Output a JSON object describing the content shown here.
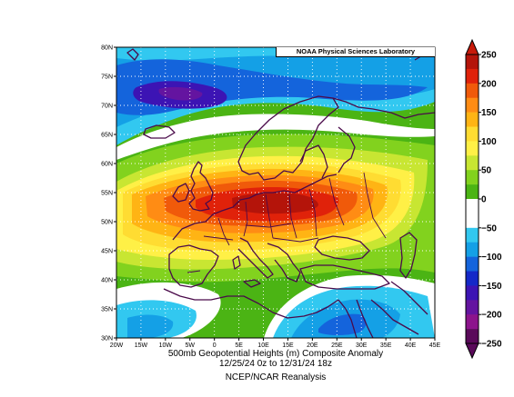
{
  "credit": "NOAA Physical Sciences Laboratory",
  "caption": {
    "line1": "500mb Geopotential Heights (m)    Composite Anomaly",
    "line2": "12/25/24 0z  to 12/31/24 18z",
    "line3": "NCEP/NCAR Reanalysis"
  },
  "axes": {
    "lat_labels": [
      "80N",
      "75N",
      "70N",
      "65N",
      "60N",
      "55N",
      "50N",
      "45N",
      "40N",
      "35N",
      "30N"
    ],
    "lon_labels": [
      "20W",
      "15W",
      "10W",
      "5W",
      "0",
      "5E",
      "10E",
      "15E",
      "20E",
      "25E",
      "30E",
      "35E",
      "40E",
      "45E"
    ]
  },
  "colorbar": {
    "labels": [
      "250",
      "200",
      "150",
      "100",
      "50",
      "0",
      "−50",
      "−100",
      "−150",
      "−200",
      "−250"
    ],
    "colors": [
      "#b4140a",
      "#e0220a",
      "#f05a0a",
      "#ff8c14",
      "#ffb414",
      "#ffdc32",
      "#fff046",
      "#c8e632",
      "#82d21e",
      "#4bb414",
      "#ffffff",
      "#ffffff",
      "#32c8f0",
      "#14a0e6",
      "#1464dc",
      "#1428c8",
      "#3c14b4",
      "#6414a0",
      "#8c148c",
      "#5a0a5a"
    ]
  },
  "map": {
    "region": "Europe",
    "lon_range": [
      -20,
      45
    ],
    "lat_range": [
      30,
      80
    ],
    "colors": {
      "land_outline": "#4a0a4a",
      "grid": "#ffffff"
    }
  }
}
